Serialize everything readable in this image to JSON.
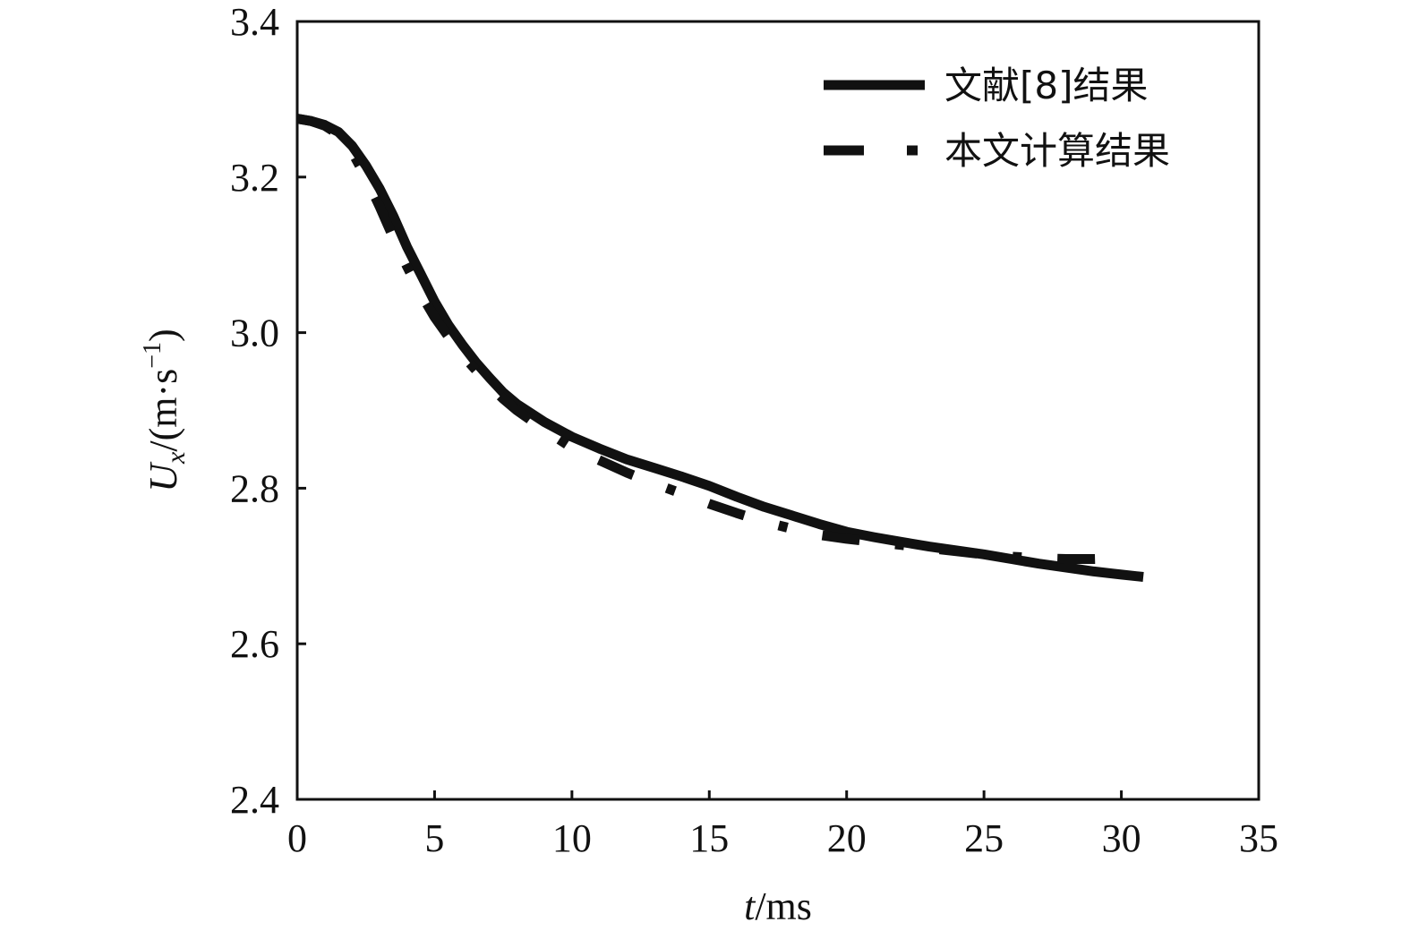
{
  "chart_data": {
    "type": "line",
    "xlabel": {
      "italic": "t",
      "rest": "/ms"
    },
    "ylabel": {
      "italic": "U",
      "sub": "x",
      "rest": "/(m·s",
      "sup": "−1",
      "close": ")"
    },
    "xlim": [
      0,
      35
    ],
    "ylim": [
      2.4,
      3.4
    ],
    "xticks": [
      0,
      5,
      10,
      15,
      20,
      25,
      30,
      35
    ],
    "yticks": [
      2.4,
      2.6,
      2.8,
      3.0,
      3.2,
      3.4
    ],
    "xtick_labels": [
      "0",
      "5",
      "10",
      "15",
      "20",
      "25",
      "30",
      "35"
    ],
    "ytick_labels": [
      "2.4",
      "2.6",
      "2.8",
      "3.0",
      "3.2",
      "3.4"
    ],
    "grid": false,
    "legend_position": "top-right",
    "series": [
      {
        "name": "文献[8]结果",
        "style": "solid",
        "color": "#111111",
        "x": [
          0,
          0.5,
          1,
          1.5,
          2,
          2.5,
          3,
          3.5,
          4,
          4.5,
          5,
          5.5,
          6,
          6.5,
          7,
          7.5,
          8,
          9,
          10,
          11,
          12,
          13,
          14,
          15,
          16,
          17,
          18,
          19,
          20,
          21,
          22,
          23,
          24,
          25,
          26,
          27,
          28,
          29,
          30,
          30.8
        ],
        "y": [
          3.275,
          3.272,
          3.267,
          3.258,
          3.24,
          3.215,
          3.185,
          3.15,
          3.11,
          3.075,
          3.04,
          3.01,
          2.985,
          2.962,
          2.942,
          2.923,
          2.908,
          2.885,
          2.866,
          2.851,
          2.837,
          2.826,
          2.815,
          2.803,
          2.789,
          2.776,
          2.765,
          2.754,
          2.744,
          2.737,
          2.731,
          2.725,
          2.72,
          2.715,
          2.709,
          2.703,
          2.698,
          2.693,
          2.689,
          2.686
        ]
      },
      {
        "name": "本文计算结果",
        "style": "dash-dot",
        "color": "#111111",
        "x": [
          0,
          0.5,
          1,
          1.5,
          2,
          2.5,
          3,
          3.5,
          4,
          4.5,
          5,
          5.5,
          6,
          6.5,
          7,
          7.5,
          8,
          9,
          10,
          11,
          12,
          13,
          14,
          15,
          16,
          17,
          18,
          19,
          20,
          21,
          22,
          23,
          24,
          25,
          26,
          27,
          28,
          29,
          30
        ],
        "y": [
          3.275,
          3.272,
          3.266,
          3.255,
          3.232,
          3.2,
          3.162,
          3.122,
          3.085,
          3.05,
          3.02,
          2.995,
          2.972,
          2.952,
          2.932,
          2.915,
          2.9,
          2.875,
          2.852,
          2.836,
          2.82,
          2.806,
          2.793,
          2.78,
          2.768,
          2.757,
          2.748,
          2.74,
          2.735,
          2.731,
          2.727,
          2.723,
          2.719,
          2.715,
          2.712,
          2.71,
          2.709,
          2.709,
          2.71
        ]
      }
    ]
  }
}
